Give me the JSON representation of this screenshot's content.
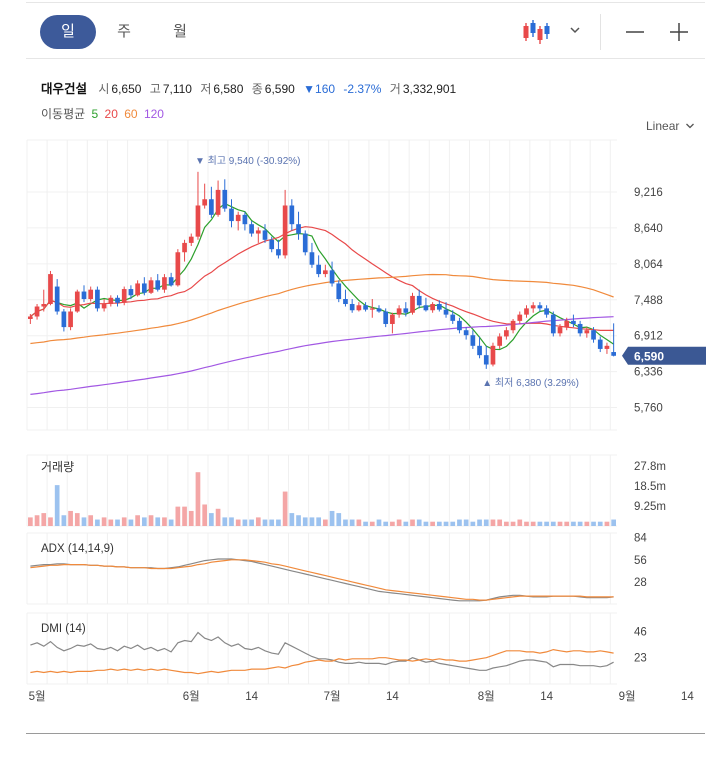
{
  "tabs": [
    {
      "label": "일",
      "active": true
    },
    {
      "label": "주",
      "active": false
    },
    {
      "label": "월",
      "active": false
    }
  ],
  "toolbar": {
    "chart_type_icon": "candlestick-icon",
    "dropdown_icon": "chevron-down-icon",
    "zoom_out_icon": "minus-icon",
    "zoom_in_icon": "plus-icon"
  },
  "quote": {
    "name": "대우건설",
    "open_label": "시",
    "open": "6,650",
    "high_label": "고",
    "high": "7,110",
    "low_label": "저",
    "low": "6,580",
    "close_label": "종",
    "close": "6,590",
    "change": "▼160",
    "change_pct": "-2.37%",
    "volume_label": "거",
    "volume": "3,332,901"
  },
  "ma_legend": {
    "label": "이동평균",
    "items": [
      {
        "period": "5",
        "color": "#2ca02c"
      },
      {
        "period": "20",
        "color": "#e8494a"
      },
      {
        "period": "60",
        "color": "#f08a3c"
      },
      {
        "period": "120",
        "color": "#a258e3"
      }
    ]
  },
  "scale": {
    "label": "Linear"
  },
  "colors": {
    "up": "#e8494a",
    "down": "#2a6cd6",
    "grid": "#f0f0f0",
    "accent": "#3d5a9a",
    "highlow": "#5a73b0"
  },
  "chart_data": {
    "type": "candlestick",
    "price_axis": {
      "ticks": [
        9216,
        8640,
        8064,
        7488,
        6912,
        6336,
        5760
      ],
      "tick_labels": [
        "9,216",
        "8,640",
        "8,064",
        "7,488",
        "6,912",
        "6,336",
        "5,760"
      ],
      "range": [
        5400,
        10050
      ]
    },
    "last_price": {
      "value": 6590,
      "label": "6,590"
    },
    "annotations": {
      "high": {
        "label": "최고",
        "value": 9540,
        "text": "9,540 (-30.92%)"
      },
      "low": {
        "label": "최저",
        "value": 6380,
        "text": "6,380 (3.29%)"
      }
    },
    "x_axis": {
      "labels": [
        {
          "label": "5월",
          "index": 1
        },
        {
          "label": "6월",
          "index": 24
        },
        {
          "label": "14",
          "index": 33
        },
        {
          "label": "7월",
          "index": 45
        },
        {
          "label": "14",
          "index": 54
        },
        {
          "label": "8월",
          "index": 68
        },
        {
          "label": "14",
          "index": 77
        },
        {
          "label": "9월",
          "index": 89
        },
        {
          "label": "14",
          "index": 98
        }
      ]
    },
    "ohlc": [
      [
        7180,
        7260,
        7100,
        7220
      ],
      [
        7220,
        7420,
        7170,
        7380
      ],
      [
        7380,
        7650,
        7300,
        7420
      ],
      [
        7420,
        7950,
        7400,
        7900
      ],
      [
        7700,
        7820,
        7250,
        7300
      ],
      [
        7300,
        7340,
        6980,
        7050
      ],
      [
        7050,
        7350,
        7000,
        7300
      ],
      [
        7300,
        7650,
        7280,
        7620
      ],
      [
        7620,
        7720,
        7450,
        7500
      ],
      [
        7500,
        7700,
        7460,
        7650
      ],
      [
        7650,
        7700,
        7300,
        7350
      ],
      [
        7350,
        7500,
        7300,
        7420
      ],
      [
        7420,
        7560,
        7380,
        7520
      ],
      [
        7520,
        7560,
        7380,
        7440
      ],
      [
        7440,
        7700,
        7400,
        7660
      ],
      [
        7660,
        7720,
        7500,
        7560
      ],
      [
        7560,
        7800,
        7540,
        7750
      ],
      [
        7750,
        7850,
        7560,
        7600
      ],
      [
        7600,
        7850,
        7580,
        7800
      ],
      [
        7800,
        7900,
        7620,
        7650
      ],
      [
        7650,
        7900,
        7600,
        7850
      ],
      [
        7850,
        7920,
        7700,
        7720
      ],
      [
        7720,
        8300,
        7700,
        8250
      ],
      [
        8250,
        8450,
        8100,
        8400
      ],
      [
        8400,
        8550,
        8350,
        8500
      ],
      [
        8500,
        9540,
        8450,
        9000
      ],
      [
        9000,
        9350,
        8950,
        9100
      ],
      [
        9100,
        9300,
        8800,
        8850
      ],
      [
        8850,
        9400,
        8820,
        9250
      ],
      [
        9250,
        9420,
        8900,
        8950
      ],
      [
        8950,
        9100,
        8650,
        8750
      ],
      [
        8750,
        8900,
        8600,
        8850
      ],
      [
        8850,
        8900,
        8600,
        8700
      ],
      [
        8700,
        8750,
        8500,
        8550
      ],
      [
        8550,
        8650,
        8400,
        8600
      ],
      [
        8600,
        8700,
        8400,
        8450
      ],
      [
        8450,
        8500,
        8250,
        8300
      ],
      [
        8300,
        8450,
        8150,
        8200
      ],
      [
        8200,
        9250,
        8150,
        9000
      ],
      [
        9000,
        9100,
        8600,
        8700
      ],
      [
        8700,
        8900,
        8450,
        8550
      ],
      [
        8550,
        8600,
        8200,
        8250
      ],
      [
        8250,
        8400,
        8000,
        8050
      ],
      [
        8050,
        8200,
        7850,
        7900
      ],
      [
        7900,
        8050,
        7850,
        7960
      ],
      [
        7960,
        8100,
        7700,
        7750
      ],
      [
        7750,
        7800,
        7450,
        7500
      ],
      [
        7500,
        7650,
        7380,
        7420
      ],
      [
        7420,
        7500,
        7280,
        7320
      ],
      [
        7320,
        7450,
        7300,
        7400
      ],
      [
        7400,
        7450,
        7300,
        7330
      ],
      [
        7330,
        7500,
        7200,
        7350
      ],
      [
        7350,
        7400,
        7280,
        7300
      ],
      [
        7300,
        7350,
        7050,
        7100
      ],
      [
        7100,
        7280,
        6950,
        7250
      ],
      [
        7250,
        7400,
        7200,
        7350
      ],
      [
        7350,
        7450,
        7220,
        7280
      ],
      [
        7280,
        7600,
        7250,
        7550
      ],
      [
        7550,
        7650,
        7350,
        7400
      ],
      [
        7400,
        7520,
        7300,
        7320
      ],
      [
        7320,
        7450,
        7280,
        7420
      ],
      [
        7420,
        7480,
        7300,
        7330
      ],
      [
        7330,
        7450,
        7200,
        7250
      ],
      [
        7250,
        7320,
        7100,
        7150
      ],
      [
        7150,
        7200,
        6950,
        7000
      ],
      [
        7000,
        7050,
        6850,
        6920
      ],
      [
        6920,
        7000,
        6700,
        6750
      ],
      [
        6750,
        6900,
        6550,
        6600
      ],
      [
        6600,
        6750,
        6380,
        6450
      ],
      [
        6450,
        6800,
        6420,
        6750
      ],
      [
        6750,
        6950,
        6700,
        6900
      ],
      [
        6900,
        7050,
        6850,
        7000
      ],
      [
        7000,
        7180,
        6950,
        7150
      ],
      [
        7150,
        7300,
        7100,
        7250
      ],
      [
        7250,
        7400,
        7200,
        7350
      ],
      [
        7350,
        7450,
        7280,
        7400
      ],
      [
        7400,
        7450,
        7300,
        7350
      ],
      [
        7350,
        7400,
        7200,
        7250
      ],
      [
        7250,
        7300,
        6900,
        6950
      ],
      [
        6950,
        7100,
        6900,
        7050
      ],
      [
        7050,
        7200,
        7000,
        7150
      ],
      [
        7150,
        7250,
        7050,
        7100
      ],
      [
        7100,
        7150,
        6900,
        6950
      ],
      [
        6950,
        7050,
        6880,
        7000
      ],
      [
        7000,
        7050,
        6800,
        6850
      ],
      [
        6850,
        6900,
        6650,
        6700
      ],
      [
        6700,
        6800,
        6620,
        6750
      ],
      [
        6650,
        7110,
        6580,
        6590
      ]
    ],
    "volume": {
      "tick_labels": [
        "27.8m",
        "18.5m",
        "9.25m"
      ],
      "ticks": [
        27.8,
        18.5,
        9.25
      ],
      "max": 33,
      "values": [
        4,
        5,
        6,
        4,
        19,
        5,
        7,
        6,
        4,
        5,
        3,
        4,
        3,
        3,
        4,
        3,
        5,
        4,
        5,
        4,
        4,
        3,
        9,
        9,
        7,
        25,
        10,
        6,
        8,
        4,
        4,
        3,
        3,
        3,
        4,
        3,
        3,
        3,
        16,
        6,
        5,
        4,
        4,
        4,
        3,
        7,
        6,
        3,
        3,
        3,
        2,
        2,
        3,
        2,
        2,
        3,
        2,
        3,
        3,
        2,
        2,
        2,
        2,
        2,
        3,
        3,
        2,
        3,
        3,
        3,
        3,
        2,
        2,
        3,
        2,
        2,
        2,
        2,
        2,
        2,
        2,
        2,
        2,
        2,
        2,
        2,
        2,
        3
      ]
    },
    "adx": {
      "label": "ADX (14,14,9)",
      "tick_labels": [
        "84",
        "56",
        "28"
      ],
      "ticks": [
        84,
        56,
        28
      ],
      "range": [
        0,
        90
      ],
      "series": [
        {
          "color": "#888888",
          "values": [
            48,
            49,
            50,
            50,
            51,
            51,
            50,
            50,
            50,
            49,
            49,
            48,
            48,
            47,
            47,
            46,
            46,
            46,
            46,
            45,
            45,
            46,
            47,
            49,
            51,
            53,
            55,
            56,
            57,
            57,
            57,
            56,
            55,
            54,
            52,
            50,
            48,
            46,
            44,
            42,
            40,
            38,
            36,
            34,
            32,
            30,
            28,
            26,
            24,
            22,
            20,
            18,
            16,
            15,
            14,
            13,
            12,
            11,
            10,
            9,
            8,
            7,
            6,
            5,
            4,
            4,
            4,
            4,
            5,
            7,
            9,
            10,
            11,
            11,
            10,
            9,
            9,
            9,
            10,
            10,
            10,
            10,
            9,
            8,
            8,
            8,
            8,
            9
          ]
        },
        {
          "color": "#f08a3c",
          "values": [
            46,
            47,
            48,
            49,
            49,
            50,
            50,
            50,
            50,
            49,
            49,
            48,
            48,
            47,
            47,
            46,
            46,
            46,
            45,
            45,
            45,
            45,
            46,
            47,
            48,
            50,
            51,
            53,
            54,
            55,
            56,
            56,
            56,
            55,
            54,
            53,
            51,
            50,
            48,
            46,
            44,
            42,
            40,
            38,
            36,
            34,
            32,
            30,
            28,
            26,
            24,
            22,
            20,
            18,
            17,
            16,
            15,
            14,
            13,
            12,
            11,
            10,
            9,
            8,
            7,
            6,
            6,
            5,
            5,
            6,
            7,
            8,
            9,
            10,
            10,
            10,
            10,
            10,
            10,
            10,
            10,
            10,
            10,
            9,
            9,
            9,
            9,
            9
          ]
        }
      ]
    },
    "dmi": {
      "label": "DMI (14)",
      "tick_labels": [
        "46",
        "23"
      ],
      "ticks": [
        46,
        23
      ],
      "range": [
        0,
        62
      ],
      "series": [
        {
          "color": "#888888",
          "values": [
            34,
            36,
            33,
            37,
            32,
            29,
            31,
            34,
            33,
            35,
            31,
            30,
            32,
            29,
            33,
            31,
            34,
            30,
            32,
            29,
            31,
            28,
            36,
            38,
            37,
            45,
            40,
            38,
            41,
            36,
            33,
            35,
            31,
            30,
            32,
            29,
            27,
            26,
            36,
            33,
            30,
            27,
            24,
            22,
            22,
            21,
            19,
            18,
            18,
            19,
            18,
            18,
            18,
            17,
            19,
            20,
            20,
            23,
            21,
            19,
            20,
            18,
            17,
            16,
            15,
            14,
            13,
            12,
            12,
            14,
            15,
            16,
            18,
            20,
            21,
            21,
            20,
            19,
            15,
            17,
            17,
            17,
            16,
            16,
            16,
            15,
            16,
            19
          ]
        },
        {
          "color": "#f08a3c",
          "values": [
            10,
            11,
            10,
            11,
            10,
            11,
            10,
            11,
            11,
            11,
            12,
            12,
            13,
            12,
            13,
            12,
            13,
            12,
            13,
            12,
            13,
            12,
            11,
            10,
            10,
            9,
            10,
            11,
            10,
            11,
            12,
            12,
            12,
            13,
            13,
            13,
            14,
            15,
            14,
            16,
            17,
            19,
            20,
            21,
            20,
            20,
            22,
            21,
            22,
            22,
            22,
            22,
            23,
            23,
            22,
            21,
            21,
            20,
            21,
            22,
            21,
            22,
            21,
            21,
            20,
            20,
            21,
            22,
            23,
            25,
            27,
            29,
            29,
            29,
            28,
            28,
            27,
            28,
            30,
            29,
            28,
            29,
            29,
            28,
            28,
            29,
            28,
            27
          ]
        }
      ]
    }
  }
}
